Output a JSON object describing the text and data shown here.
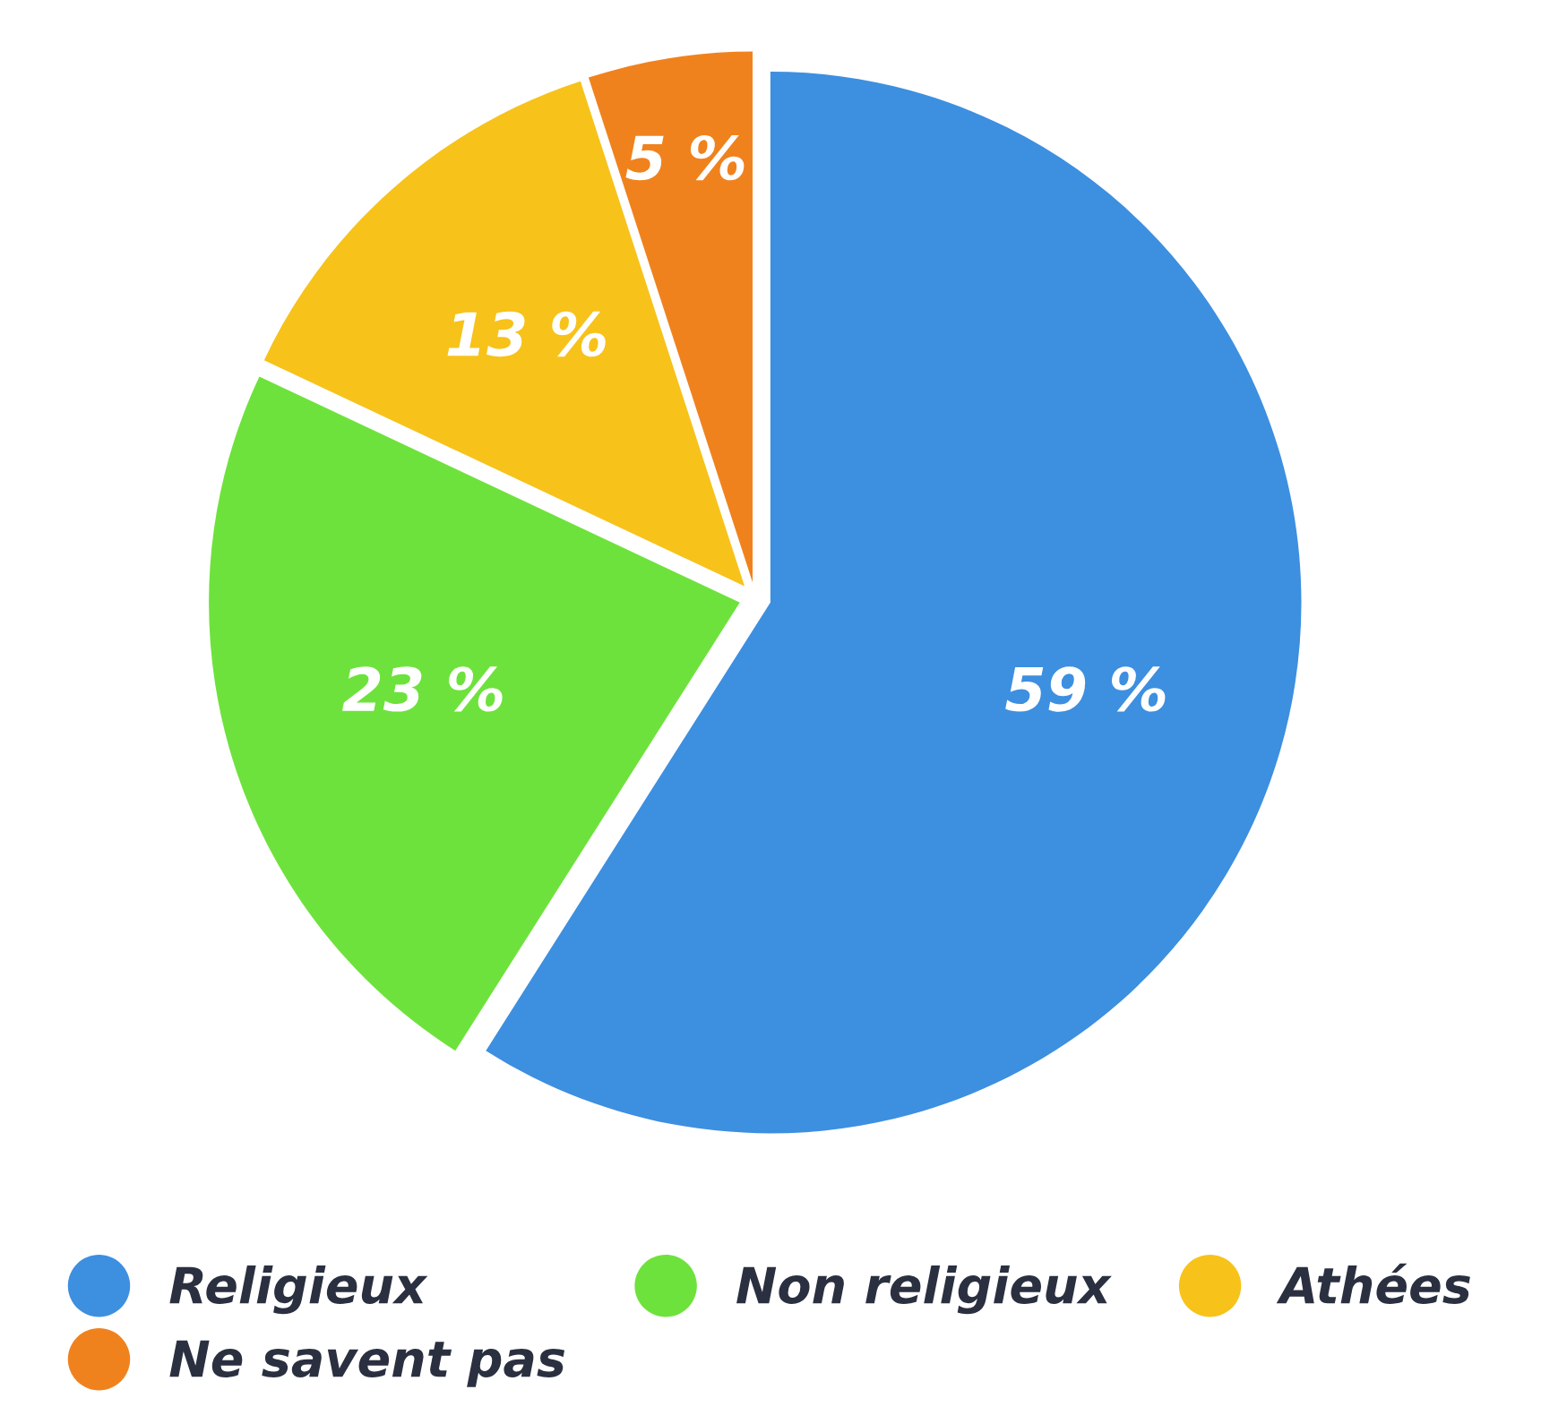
{
  "chart_data": {
    "type": "pie",
    "categories": [
      "Religieux",
      "Non religieux",
      "Athées",
      "Ne savent pas"
    ],
    "values": [
      59,
      23,
      13,
      5
    ],
    "colors": [
      "#3d8fe0",
      "#6ee23c",
      "#f7c21a",
      "#f0821e"
    ],
    "value_labels": [
      "59 %",
      "23 %",
      "13 %",
      "5 %"
    ],
    "legend": "bottom"
  }
}
